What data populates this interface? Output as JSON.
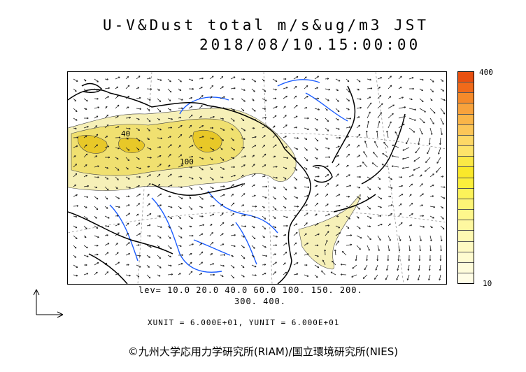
{
  "title": {
    "line1": "U-V&Dust total m/s&ug/m3 JST",
    "line2": "2018/08/10.15:00:00"
  },
  "map": {
    "contour_labels": [
      "40",
      "100"
    ],
    "colors": {
      "dust_light": "#f6f0b8",
      "dust_mid": "#f0e070",
      "dust_strong": "#e8c828",
      "coast": "#000000",
      "rivers": "#1a5cff",
      "graticule": "#888888",
      "wind_arrow": "#222222"
    }
  },
  "colorbar": {
    "max_label": "400",
    "min_label": "10",
    "colors": [
      "#e85010",
      "#f06a1a",
      "#f58a2a",
      "#f8a23c",
      "#fab548",
      "#fcc658",
      "#fdd866",
      "#fde36a",
      "#fbe846",
      "#fae82a",
      "#fbef3c",
      "#fcf35a",
      "#fdf576",
      "#fef78c",
      "#fef8a0",
      "#fef9b2",
      "#fefac2",
      "#fefbd0",
      "#fefcdb",
      "#fffde6"
    ]
  },
  "legend": {
    "lev_line1": "lev= 10.0 20.0 40.0 60.0 100. 150. 200.",
    "lev_line2": "300. 400.",
    "units": "XUNIT = 6.000E+01, YUNIT = 6.000E+01"
  },
  "copyright": "©九州大学応用力学研究所(RIAM)/国立環境研究所(NIES)"
}
